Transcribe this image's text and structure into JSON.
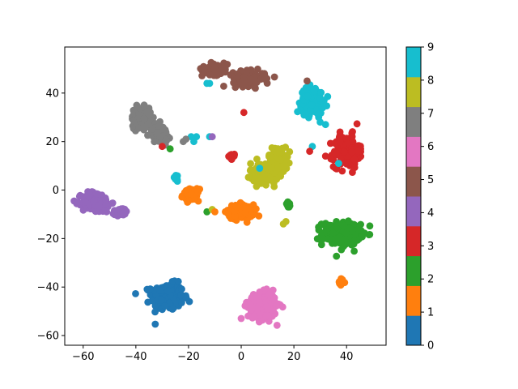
{
  "chart_data": {
    "type": "scatter",
    "title": "",
    "xlabel": "",
    "ylabel": "",
    "xlim": [
      -67,
      55
    ],
    "ylim": [
      -64,
      59
    ],
    "x_ticks": [
      -60,
      -40,
      -20,
      0,
      20,
      40
    ],
    "y_ticks": [
      -60,
      -40,
      -20,
      0,
      20,
      40
    ],
    "colorbar": {
      "ticks": [
        0,
        1,
        2,
        3,
        4,
        5,
        6,
        7,
        8,
        9
      ],
      "colors": [
        "#1f77b4",
        "#ff7f0e",
        "#2ca02c",
        "#d62728",
        "#9467bd",
        "#8c564b",
        "#e377c2",
        "#7f7f7f",
        "#bcbd22",
        "#17becf"
      ]
    },
    "clusters": [
      {
        "label": 0,
        "center": [
          -28,
          -44
        ],
        "spread": [
          5,
          4.5
        ],
        "count": 260
      },
      {
        "label": 1,
        "center": [
          0,
          -9
        ],
        "spread": [
          4,
          2.5
        ],
        "count": 150
      },
      {
        "label": 1,
        "center": [
          -19,
          -2
        ],
        "spread": [
          2.5,
          2
        ],
        "count": 70
      },
      {
        "label": 1,
        "center": [
          38,
          -38
        ],
        "spread": [
          1.2,
          1.2
        ],
        "count": 15
      },
      {
        "label": 2,
        "center": [
          38,
          -18
        ],
        "spread": [
          6,
          4
        ],
        "count": 230
      },
      {
        "label": 2,
        "center": [
          18,
          -6
        ],
        "spread": [
          1,
          1
        ],
        "count": 10
      },
      {
        "label": 3,
        "center": [
          40,
          16
        ],
        "spread": [
          4,
          5.5
        ],
        "count": 170
      },
      {
        "label": 3,
        "center": [
          -3,
          14
        ],
        "spread": [
          1.5,
          1
        ],
        "count": 10
      },
      {
        "label": 4,
        "center": [
          -55,
          -5
        ],
        "spread": [
          4.5,
          3.5
        ],
        "count": 190
      },
      {
        "label": 4,
        "center": [
          -46,
          -9
        ],
        "spread": [
          2.5,
          1.3
        ],
        "count": 40
      },
      {
        "label": 5,
        "center": [
          -10,
          50
        ],
        "spread": [
          4,
          2
        ],
        "count": 90
      },
      {
        "label": 5,
        "center": [
          3,
          46
        ],
        "spread": [
          5,
          2.5
        ],
        "count": 130
      },
      {
        "label": 6,
        "center": [
          8,
          -48
        ],
        "spread": [
          4.5,
          4.5
        ],
        "count": 220
      },
      {
        "label": 7,
        "center": [
          -38,
          30
        ],
        "spread": [
          3,
          3.5
        ],
        "count": 120
      },
      {
        "label": 7,
        "center": [
          -31,
          23
        ],
        "spread": [
          2.5,
          3
        ],
        "count": 100
      },
      {
        "label": 8,
        "center": [
          9,
          7
        ],
        "spread": [
          4.5,
          3.5
        ],
        "count": 160
      },
      {
        "label": 8,
        "center": [
          14,
          13
        ],
        "spread": [
          3,
          4
        ],
        "count": 80
      },
      {
        "label": 9,
        "center": [
          27,
          37
        ],
        "spread": [
          3.5,
          4.5
        ],
        "count": 200
      },
      {
        "label": 9,
        "center": [
          -25,
          5
        ],
        "spread": [
          1.2,
          1.2
        ],
        "count": 15
      }
    ],
    "outliers": [
      {
        "label": 9,
        "x": -12,
        "y": 44
      },
      {
        "label": 9,
        "x": -13,
        "y": 44
      },
      {
        "label": 9,
        "x": -17,
        "y": 22
      },
      {
        "label": 9,
        "x": -18,
        "y": 20
      },
      {
        "label": 9,
        "x": -19,
        "y": 22
      },
      {
        "label": 9,
        "x": -12,
        "y": 22
      },
      {
        "label": 9,
        "x": 27,
        "y": 18
      },
      {
        "label": 9,
        "x": 30,
        "y": 28
      },
      {
        "label": 9,
        "x": 32,
        "y": 27
      },
      {
        "label": 9,
        "x": 37,
        "y": 11
      },
      {
        "label": 9,
        "x": 7,
        "y": 9
      },
      {
        "label": 3,
        "x": 1,
        "y": 32
      },
      {
        "label": 3,
        "x": -30,
        "y": 18
      },
      {
        "label": 3,
        "x": 32,
        "y": 14
      },
      {
        "label": 3,
        "x": 26,
        "y": 16
      },
      {
        "label": 2,
        "x": -27,
        "y": 17
      },
      {
        "label": 2,
        "x": -13,
        "y": -9
      },
      {
        "label": 5,
        "x": 25,
        "y": 45
      },
      {
        "label": 7,
        "x": -22,
        "y": 20
      },
      {
        "label": 7,
        "x": -21,
        "y": 21
      },
      {
        "label": 4,
        "x": -11,
        "y": 22
      },
      {
        "label": 8,
        "x": -11,
        "y": -8
      },
      {
        "label": 8,
        "x": 16,
        "y": -14
      },
      {
        "label": 8,
        "x": 17,
        "y": -13
      },
      {
        "label": 1,
        "x": -10,
        "y": -9
      },
      {
        "label": 6,
        "x": 5,
        "y": -52
      }
    ]
  }
}
